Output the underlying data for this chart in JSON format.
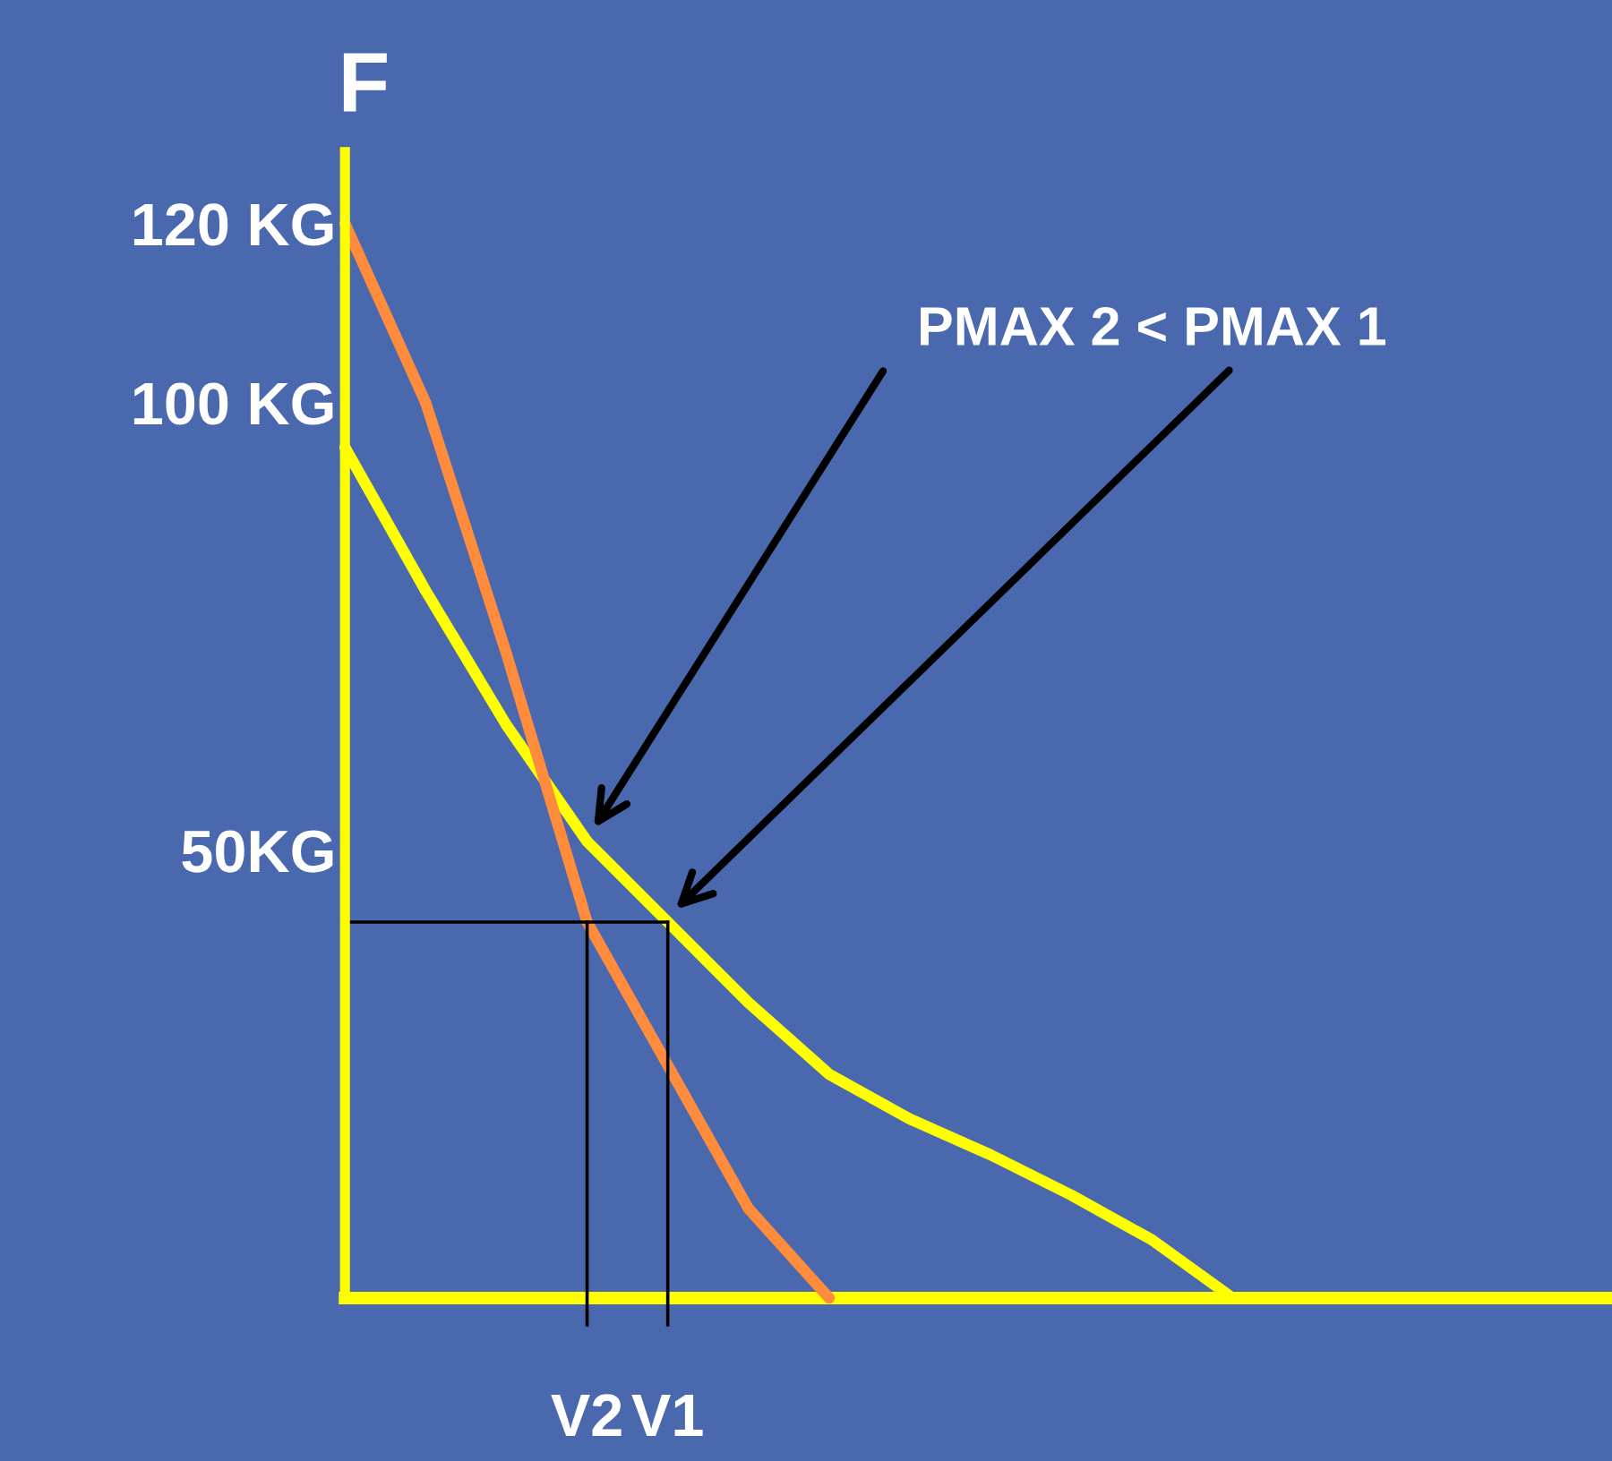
{
  "chart_data": {
    "type": "line",
    "ylabel": "F",
    "categories": [
      null,
      null,
      null,
      "V2",
      "V1",
      null,
      null,
      null,
      null,
      null,
      null,
      null,
      null,
      null,
      null,
      null
    ],
    "ylim": [
      0,
      128
    ],
    "yticks": [
      {
        "value": 50,
        "label": "50KG"
      },
      {
        "value": 100,
        "label": "100 KG"
      },
      {
        "value": 120,
        "label": "120 KG"
      }
    ],
    "grid": false,
    "line_style": "solid",
    "marker": "none",
    "series": [
      {
        "color": "#ffff00",
        "values": [
          95,
          79,
          64,
          51,
          42,
          33,
          25,
          20,
          16,
          11.5,
          6.5,
          0,
          null,
          null,
          null,
          null
        ]
      },
      {
        "color": "#ff8c3c",
        "values": [
          120,
          100,
          72,
          42,
          26,
          10,
          0,
          null,
          null,
          null,
          null,
          null,
          null,
          null,
          null,
          null
        ]
      },
      {
        "color": "#000000",
        "values": [
          42,
          42,
          42,
          42,
          42,
          null,
          null,
          null,
          null,
          null,
          null,
          null,
          null,
          null,
          null,
          null
        ]
      }
    ],
    "ref_lines": [
      {
        "axis": "y",
        "value": 0,
        "color": "#ffff00"
      },
      {
        "axis": "x",
        "value": "V2",
        "color": "#000000"
      },
      {
        "axis": "x",
        "value": "V1",
        "color": "#000000"
      }
    ],
    "annotations": [
      "PMAX 2 < PMAX 1"
    ]
  }
}
